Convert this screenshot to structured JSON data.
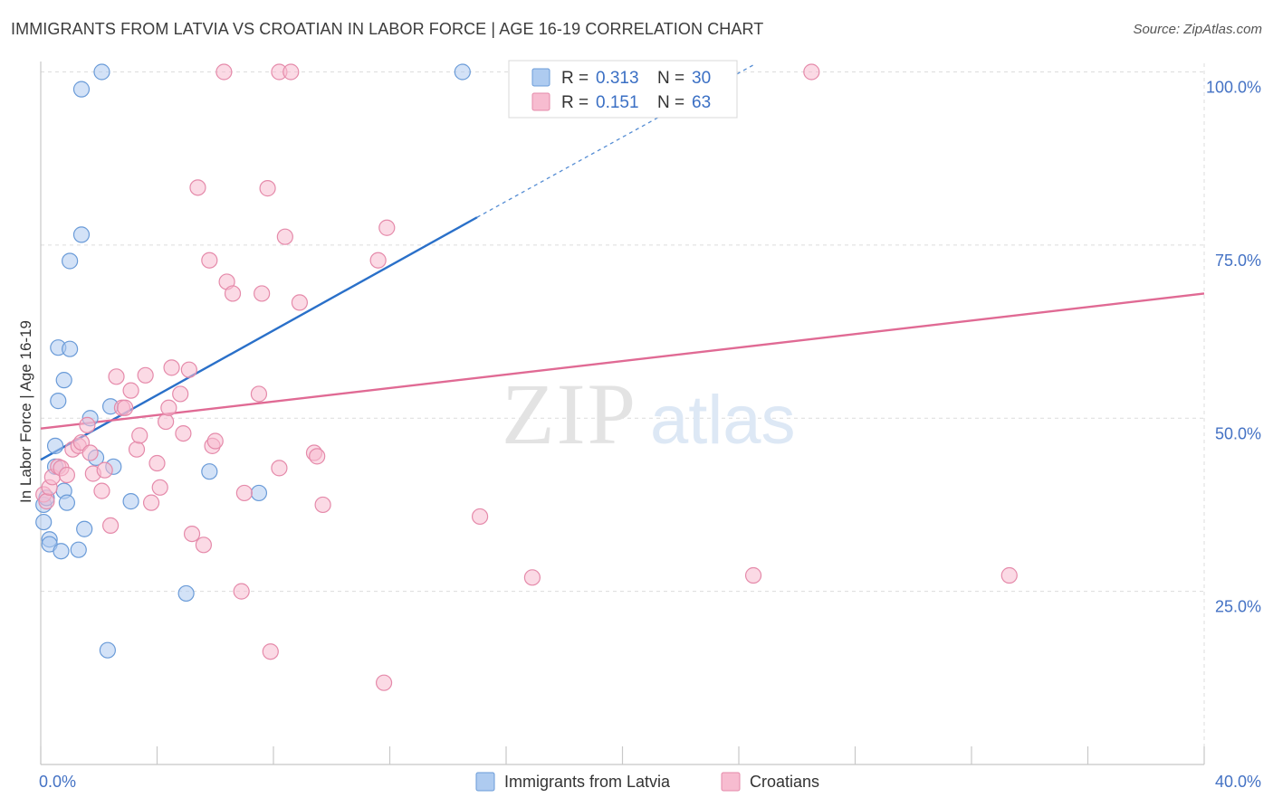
{
  "title": "IMMIGRANTS FROM LATVIA VS CROATIAN IN LABOR FORCE | AGE 16-19 CORRELATION CHART",
  "source": "Source: ZipAtlas.com",
  "watermark": {
    "zip": "ZIP",
    "atlas": "atlas"
  },
  "colors": {
    "blue_fill": "#aecbf0",
    "blue_stroke": "#6a9bd8",
    "blue_line": "#2a70c9",
    "pink_fill": "#f7bcd0",
    "pink_stroke": "#e58aaa",
    "pink_line": "#e06a94",
    "grid": "#dcdcdc",
    "tick_text": "#4472c4"
  },
  "chart_data": {
    "type": "scatter",
    "xlabel": "",
    "ylabel": "In Labor Force | Age 16-19",
    "xlim": [
      0,
      40
    ],
    "ylim": [
      0,
      100
    ],
    "x_tick_labels": [
      "0.0%",
      "40.0%"
    ],
    "y_ticks": [
      25,
      50,
      75,
      100
    ],
    "y_tick_labels": [
      "25.0%",
      "50.0%",
      "75.0%",
      "100.0%"
    ],
    "grid": true,
    "legend": {
      "position": "top-center",
      "entries": [
        {
          "r_label": "R =",
          "r_value": "0.313",
          "n_label": "N =",
          "n_value": "30"
        },
        {
          "r_label": "R =",
          "r_value": "0.151",
          "n_label": "N =",
          "n_value": "63"
        }
      ]
    },
    "series": [
      {
        "name": "Immigrants from Latvia",
        "color": "blue",
        "trend": {
          "x0": 0,
          "y0": 44,
          "x1": 15,
          "y1": 79,
          "dash_to_x": 24.5,
          "dash_to_y": 101
        },
        "points": [
          [
            0.1,
            35.0
          ],
          [
            0.1,
            37.5
          ],
          [
            0.2,
            38.5
          ],
          [
            0.3,
            32.5
          ],
          [
            0.3,
            31.8
          ],
          [
            0.5,
            43.0
          ],
          [
            0.5,
            46.0
          ],
          [
            0.6,
            52.5
          ],
          [
            0.6,
            60.2
          ],
          [
            0.7,
            30.8
          ],
          [
            0.8,
            39.5
          ],
          [
            0.8,
            55.5
          ],
          [
            0.9,
            37.8
          ],
          [
            1.0,
            60.0
          ],
          [
            1.0,
            72.7
          ],
          [
            1.3,
            31.0
          ],
          [
            1.4,
            76.5
          ],
          [
            1.4,
            97.5
          ],
          [
            1.5,
            34.0
          ],
          [
            1.7,
            50.0
          ],
          [
            1.9,
            44.3
          ],
          [
            2.1,
            100.0
          ],
          [
            2.3,
            16.5
          ],
          [
            2.4,
            51.7
          ],
          [
            2.5,
            43.0
          ],
          [
            3.1,
            38.0
          ],
          [
            5.0,
            24.7
          ],
          [
            5.8,
            42.3
          ],
          [
            7.5,
            39.2
          ],
          [
            14.5,
            100.0
          ]
        ]
      },
      {
        "name": "Croatians",
        "color": "pink",
        "trend": {
          "x0": 0,
          "y0": 48.5,
          "x1": 40,
          "y1": 68
        },
        "points": [
          [
            0.1,
            39.0
          ],
          [
            0.2,
            38.0
          ],
          [
            0.3,
            40.0
          ],
          [
            0.4,
            41.5
          ],
          [
            0.6,
            43.0
          ],
          [
            0.7,
            42.8
          ],
          [
            0.9,
            41.8
          ],
          [
            1.1,
            45.5
          ],
          [
            1.3,
            46.0
          ],
          [
            1.4,
            46.5
          ],
          [
            1.6,
            49.0
          ],
          [
            1.7,
            45.0
          ],
          [
            1.8,
            42.0
          ],
          [
            2.1,
            39.5
          ],
          [
            2.2,
            42.5
          ],
          [
            2.4,
            34.5
          ],
          [
            2.6,
            56.0
          ],
          [
            2.8,
            51.5
          ],
          [
            2.9,
            51.5
          ],
          [
            3.1,
            54.0
          ],
          [
            3.3,
            45.5
          ],
          [
            3.4,
            47.5
          ],
          [
            3.6,
            56.2
          ],
          [
            3.8,
            37.8
          ],
          [
            4.0,
            43.5
          ],
          [
            4.1,
            40.0
          ],
          [
            4.3,
            49.5
          ],
          [
            4.4,
            51.5
          ],
          [
            4.5,
            57.3
          ],
          [
            4.8,
            53.5
          ],
          [
            4.9,
            47.8
          ],
          [
            5.1,
            57.0
          ],
          [
            5.2,
            33.3
          ],
          [
            5.4,
            83.3
          ],
          [
            5.6,
            31.7
          ],
          [
            5.8,
            72.8
          ],
          [
            5.9,
            46.0
          ],
          [
            6.0,
            46.7
          ],
          [
            6.3,
            100.0
          ],
          [
            6.4,
            69.7
          ],
          [
            6.6,
            68.0
          ],
          [
            6.9,
            25.0
          ],
          [
            7.0,
            39.2
          ],
          [
            7.5,
            53.5
          ],
          [
            7.6,
            68.0
          ],
          [
            7.8,
            83.2
          ],
          [
            7.9,
            16.3
          ],
          [
            8.2,
            42.8
          ],
          [
            8.2,
            100.0
          ],
          [
            8.4,
            76.2
          ],
          [
            8.6,
            100.0
          ],
          [
            8.9,
            66.7
          ],
          [
            9.4,
            45.0
          ],
          [
            9.5,
            44.5
          ],
          [
            9.7,
            37.5
          ],
          [
            11.6,
            72.8
          ],
          [
            11.8,
            11.8
          ],
          [
            11.9,
            77.5
          ],
          [
            15.1,
            35.8
          ],
          [
            16.9,
            27.0
          ],
          [
            24.5,
            27.3
          ],
          [
            26.5,
            100.0
          ],
          [
            33.3,
            27.3
          ]
        ]
      }
    ]
  }
}
